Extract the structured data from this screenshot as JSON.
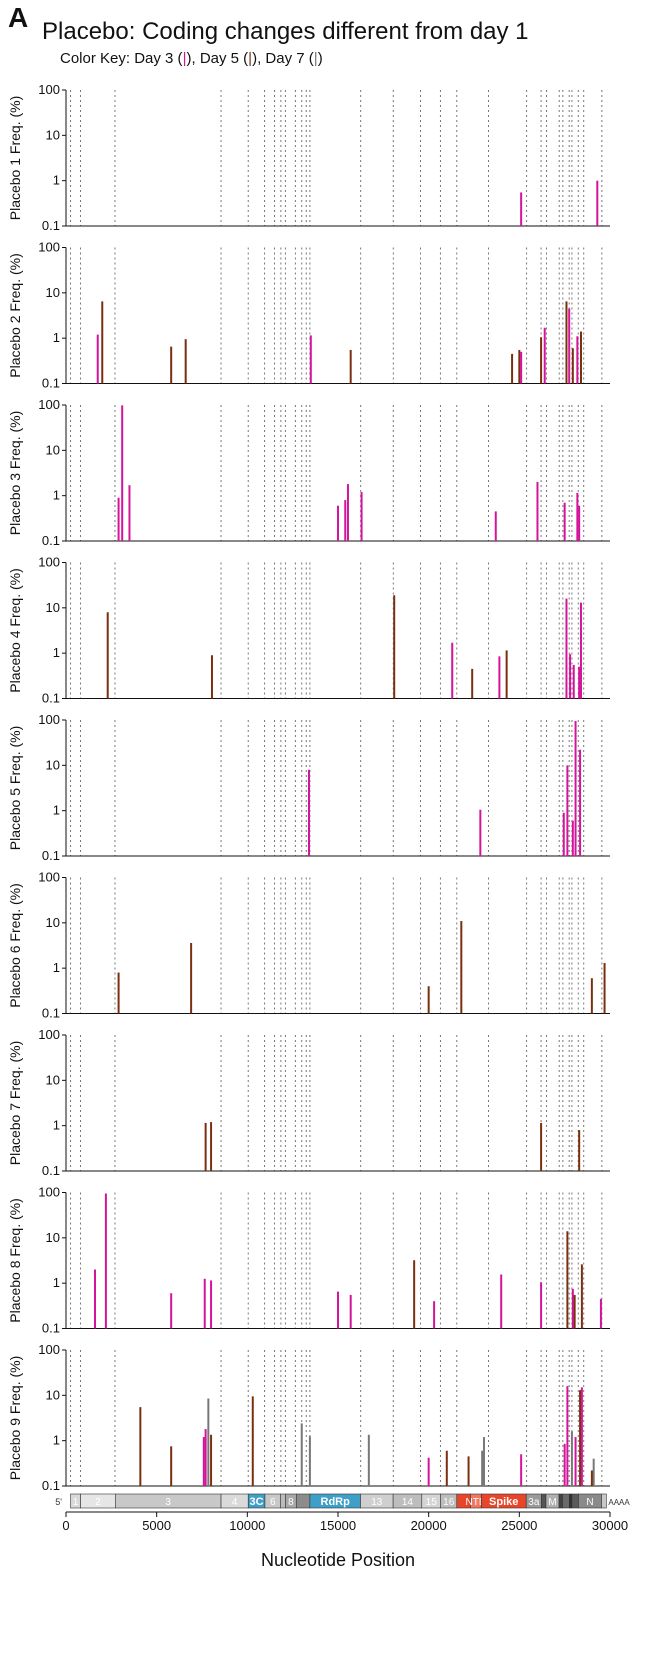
{
  "figure": {
    "panel_letter": "A",
    "title": "Placebo: Coding changes different from day 1",
    "color_key": {
      "prefix": "Color Key: ",
      "items": [
        {
          "label": "Day 3 (",
          "mark": "|",
          "suffix": "), ",
          "color": "#d4149a"
        },
        {
          "label": "Day 5 (",
          "mark": "|",
          "suffix": "), ",
          "color": "#7a3010"
        },
        {
          "label": "Day 7 (",
          "mark": "|",
          "suffix": ")",
          "color": "#777777"
        }
      ]
    }
  },
  "chart_data": {
    "type": "bar",
    "xlabel": "Nucleotide Position",
    "xlim": [
      0,
      30000
    ],
    "x_ticks": [
      0,
      5000,
      10000,
      15000,
      20000,
      25000,
      30000
    ],
    "y_scale": "log",
    "ylim": [
      0.1,
      100
    ],
    "y_ticks": [
      0.1,
      1,
      10,
      100
    ],
    "y_tick_labels": [
      "0.1",
      "1",
      "10",
      "100"
    ],
    "colors": {
      "day3": "#d4149a",
      "day5": "#7a3010",
      "day7": "#777777"
    },
    "gene_boundaries": [
      250,
      800,
      2700,
      8550,
      10050,
      10950,
      11500,
      11850,
      12100,
      12650,
      13000,
      13250,
      13450,
      16250,
      18050,
      19550,
      20650,
      21550,
      23300,
      25400,
      26200,
      26500,
      27200,
      27400,
      27750,
      27900,
      28250,
      28550,
      29550
    ],
    "genome_map": {
      "five_prime": "5'",
      "three_prime": "AAAA",
      "segments": [
        {
          "label": "1",
          "start": 250,
          "end": 800,
          "color": "#d9d9d9",
          "text_color": "#ffffff"
        },
        {
          "label": "2",
          "start": 800,
          "end": 2720,
          "color": "#e6e6e6",
          "text_color": "#ffffff"
        },
        {
          "label": "3",
          "start": 2720,
          "end": 8550,
          "color": "#c8c8c8",
          "text_color": "#ffffff"
        },
        {
          "label": "4",
          "start": 8550,
          "end": 10050,
          "color": "#dadada",
          "text_color": "#ffffff"
        },
        {
          "label": "3C",
          "start": 10050,
          "end": 10970,
          "color": "#3f9fc7",
          "text_color": "#ffffff"
        },
        {
          "label": "6",
          "start": 10970,
          "end": 11840,
          "color": "#c8c8c8",
          "text_color": "#ffffff"
        },
        {
          "label": "",
          "start": 11840,
          "end": 12100,
          "color": "#bbbbbb",
          "text_color": "#ffffff"
        },
        {
          "label": "8",
          "start": 12100,
          "end": 12700,
          "color": "#a8a8a8",
          "text_color": "#ffffff"
        },
        {
          "label": "",
          "start": 12700,
          "end": 13450,
          "color": "#8c8c8c",
          "text_color": "#ffffff"
        },
        {
          "label": "RdRp",
          "start": 13450,
          "end": 16240,
          "color": "#3f9fc7",
          "text_color": "#ffffff"
        },
        {
          "label": "13",
          "start": 16240,
          "end": 18040,
          "color": "#cfcfcf",
          "text_color": "#ffffff"
        },
        {
          "label": "14",
          "start": 18040,
          "end": 19620,
          "color": "#bdbdbd",
          "text_color": "#ffffff"
        },
        {
          "label": "15",
          "start": 19620,
          "end": 20660,
          "color": "#d4d4d4",
          "text_color": "#ffffff"
        },
        {
          "label": "16",
          "start": 20660,
          "end": 21550,
          "color": "#bdbdbd",
          "text_color": "#ffffff"
        },
        {
          "label": "",
          "start": 21550,
          "end": 22300,
          "color": "#e8462b",
          "text_color": "#ffffff"
        },
        {
          "label": "NTD",
          "start": 22300,
          "end": 22900,
          "color": "#f07860",
          "text_color": "#ffffff"
        },
        {
          "label": "Spike",
          "start": 22900,
          "end": 25380,
          "color": "#e8462b",
          "text_color": "#ffffff"
        },
        {
          "label": "3a",
          "start": 25380,
          "end": 26220,
          "color": "#9a9a9a",
          "text_color": "#ffffff"
        },
        {
          "label": "",
          "start": 26220,
          "end": 26470,
          "color": "#555555",
          "text_color": "#ffffff"
        },
        {
          "label": "M",
          "start": 26470,
          "end": 27190,
          "color": "#b0b0b0",
          "text_color": "#ffffff"
        },
        {
          "label": "",
          "start": 27190,
          "end": 27380,
          "color": "#444444",
          "text_color": "#ffffff"
        },
        {
          "label": "",
          "start": 27380,
          "end": 27760,
          "color": "#6a6a6a",
          "text_color": "#ffffff"
        },
        {
          "label": "",
          "start": 27760,
          "end": 27900,
          "color": "#333333",
          "text_color": "#ffffff"
        },
        {
          "label": "",
          "start": 27900,
          "end": 28260,
          "color": "#5a5a5a",
          "text_color": "#ffffff"
        },
        {
          "label": "N",
          "start": 28260,
          "end": 29530,
          "color": "#8a8a8a",
          "text_color": "#ffffff"
        },
        {
          "label": "",
          "start": 29530,
          "end": 29800,
          "color": "#c8c8c8",
          "text_color": "#ffffff"
        }
      ]
    },
    "panels": [
      {
        "ylabel": "Placebo 1 Freq. (%)",
        "bars": [
          {
            "x": 25100,
            "y": 0.55,
            "day": "day3"
          },
          {
            "x": 29300,
            "y": 1.0,
            "day": "day3"
          }
        ]
      },
      {
        "ylabel": "Placebo 2 Freq. (%)",
        "bars": [
          {
            "x": 1750,
            "y": 1.2,
            "day": "day3"
          },
          {
            "x": 2000,
            "y": 6.5,
            "day": "day5"
          },
          {
            "x": 5800,
            "y": 0.65,
            "day": "day5"
          },
          {
            "x": 6600,
            "y": 0.95,
            "day": "day5"
          },
          {
            "x": 13500,
            "y": 1.15,
            "day": "day3"
          },
          {
            "x": 15700,
            "y": 0.55,
            "day": "day5"
          },
          {
            "x": 24600,
            "y": 0.45,
            "day": "day5"
          },
          {
            "x": 25000,
            "y": 0.55,
            "day": "day5"
          },
          {
            "x": 25100,
            "y": 0.5,
            "day": "day3"
          },
          {
            "x": 26200,
            "y": 1.05,
            "day": "day5"
          },
          {
            "x": 26400,
            "y": 1.7,
            "day": "day3"
          },
          {
            "x": 27600,
            "y": 6.5,
            "day": "day5"
          },
          {
            "x": 27750,
            "y": 4.5,
            "day": "day3"
          },
          {
            "x": 27950,
            "y": 0.6,
            "day": "day5"
          },
          {
            "x": 28200,
            "y": 1.1,
            "day": "day3"
          },
          {
            "x": 28400,
            "y": 1.4,
            "day": "day5"
          }
        ]
      },
      {
        "ylabel": "Placebo 3 Freq. (%)",
        "bars": [
          {
            "x": 2900,
            "y": 0.9,
            "day": "day3"
          },
          {
            "x": 3100,
            "y": 98,
            "day": "day3"
          },
          {
            "x": 3500,
            "y": 1.7,
            "day": "day3"
          },
          {
            "x": 15000,
            "y": 0.6,
            "day": "day3"
          },
          {
            "x": 15400,
            "y": 0.8,
            "day": "day3"
          },
          {
            "x": 15550,
            "y": 1.8,
            "day": "day3"
          },
          {
            "x": 16300,
            "y": 1.2,
            "day": "day3"
          },
          {
            "x": 23700,
            "y": 0.45,
            "day": "day3"
          },
          {
            "x": 26000,
            "y": 2.0,
            "day": "day3"
          },
          {
            "x": 27500,
            "y": 0.7,
            "day": "day3"
          },
          {
            "x": 28200,
            "y": 1.15,
            "day": "day3"
          },
          {
            "x": 28300,
            "y": 0.6,
            "day": "day3"
          }
        ]
      },
      {
        "ylabel": "Placebo 4 Freq. (%)",
        "bars": [
          {
            "x": 2300,
            "y": 8.0,
            "day": "day5"
          },
          {
            "x": 8050,
            "y": 0.9,
            "day": "day5"
          },
          {
            "x": 18100,
            "y": 19,
            "day": "day5"
          },
          {
            "x": 21300,
            "y": 1.7,
            "day": "day3"
          },
          {
            "x": 22400,
            "y": 0.45,
            "day": "day5"
          },
          {
            "x": 23900,
            "y": 0.85,
            "day": "day3"
          },
          {
            "x": 24300,
            "y": 1.15,
            "day": "day5"
          },
          {
            "x": 27600,
            "y": 16,
            "day": "day3"
          },
          {
            "x": 27800,
            "y": 0.95,
            "day": "day3"
          },
          {
            "x": 28000,
            "y": 0.55,
            "day": "day3"
          },
          {
            "x": 28300,
            "y": 0.5,
            "day": "day3"
          },
          {
            "x": 28400,
            "y": 13,
            "day": "day3"
          }
        ]
      },
      {
        "ylabel": "Placebo 5 Freq. (%)",
        "bars": [
          {
            "x": 13400,
            "y": 8.0,
            "day": "day3"
          },
          {
            "x": 22850,
            "y": 1.05,
            "day": "day3"
          },
          {
            "x": 27450,
            "y": 0.9,
            "day": "day3"
          },
          {
            "x": 27650,
            "y": 10,
            "day": "day3"
          },
          {
            "x": 27950,
            "y": 0.6,
            "day": "day3"
          },
          {
            "x": 28100,
            "y": 95,
            "day": "day3"
          },
          {
            "x": 28350,
            "y": 22,
            "day": "day3"
          }
        ]
      },
      {
        "ylabel": "Placebo 6 Freq. (%)",
        "bars": [
          {
            "x": 2900,
            "y": 0.8,
            "day": "day5"
          },
          {
            "x": 6900,
            "y": 3.6,
            "day": "day5"
          },
          {
            "x": 20000,
            "y": 0.4,
            "day": "day5"
          },
          {
            "x": 21800,
            "y": 11,
            "day": "day5"
          },
          {
            "x": 29000,
            "y": 0.6,
            "day": "day5"
          },
          {
            "x": 29700,
            "y": 1.3,
            "day": "day5"
          }
        ]
      },
      {
        "ylabel": "Placebo 7 Freq. (%)",
        "bars": [
          {
            "x": 7700,
            "y": 1.15,
            "day": "day5"
          },
          {
            "x": 8000,
            "y": 1.2,
            "day": "day5"
          },
          {
            "x": 26200,
            "y": 1.15,
            "day": "day5"
          },
          {
            "x": 28300,
            "y": 0.8,
            "day": "day5"
          }
        ]
      },
      {
        "ylabel": "Placebo 8 Freq. (%)",
        "bars": [
          {
            "x": 1600,
            "y": 2.0,
            "day": "day3"
          },
          {
            "x": 2200,
            "y": 95,
            "day": "day3"
          },
          {
            "x": 5800,
            "y": 0.6,
            "day": "day3"
          },
          {
            "x": 7650,
            "y": 1.25,
            "day": "day3"
          },
          {
            "x": 8000,
            "y": 1.15,
            "day": "day3"
          },
          {
            "x": 15000,
            "y": 0.65,
            "day": "day3"
          },
          {
            "x": 15700,
            "y": 0.55,
            "day": "day3"
          },
          {
            "x": 19200,
            "y": 3.2,
            "day": "day5"
          },
          {
            "x": 20300,
            "y": 0.4,
            "day": "day3"
          },
          {
            "x": 24000,
            "y": 1.55,
            "day": "day3"
          },
          {
            "x": 26200,
            "y": 1.05,
            "day": "day3"
          },
          {
            "x": 27650,
            "y": 14,
            "day": "day5"
          },
          {
            "x": 27950,
            "y": 0.75,
            "day": "day3"
          },
          {
            "x": 28050,
            "y": 0.55,
            "day": "day5"
          },
          {
            "x": 28450,
            "y": 2.6,
            "day": "day5"
          },
          {
            "x": 29500,
            "y": 0.45,
            "day": "day3"
          }
        ]
      },
      {
        "ylabel": "Placebo 9 Freq. (%)",
        "bars": [
          {
            "x": 4100,
            "y": 5.5,
            "day": "day5"
          },
          {
            "x": 5800,
            "y": 0.75,
            "day": "day5"
          },
          {
            "x": 7600,
            "y": 1.2,
            "day": "day3"
          },
          {
            "x": 7700,
            "y": 1.8,
            "day": "day3"
          },
          {
            "x": 7850,
            "y": 8.5,
            "day": "day7"
          },
          {
            "x": 8000,
            "y": 1.35,
            "day": "day5"
          },
          {
            "x": 10300,
            "y": 9.5,
            "day": "day5"
          },
          {
            "x": 13000,
            "y": 2.4,
            "day": "day7"
          },
          {
            "x": 13450,
            "y": 1.25,
            "day": "day7"
          },
          {
            "x": 16700,
            "y": 1.35,
            "day": "day7"
          },
          {
            "x": 20000,
            "y": 0.42,
            "day": "day3"
          },
          {
            "x": 21000,
            "y": 0.6,
            "day": "day5"
          },
          {
            "x": 22200,
            "y": 0.45,
            "day": "day5"
          },
          {
            "x": 22950,
            "y": 0.6,
            "day": "day7"
          },
          {
            "x": 23050,
            "y": 1.2,
            "day": "day7"
          },
          {
            "x": 25100,
            "y": 0.5,
            "day": "day3"
          },
          {
            "x": 27500,
            "y": 0.85,
            "day": "day3"
          },
          {
            "x": 27650,
            "y": 16,
            "day": "day3"
          },
          {
            "x": 27900,
            "y": 1.6,
            "day": "day7"
          },
          {
            "x": 28100,
            "y": 1.2,
            "day": "day3"
          },
          {
            "x": 28350,
            "y": 13,
            "day": "day5"
          },
          {
            "x": 28450,
            "y": 15,
            "day": "day3"
          },
          {
            "x": 29100,
            "y": 0.4,
            "day": "day7"
          },
          {
            "x": 29000,
            "y": 0.22,
            "day": "day5"
          }
        ]
      }
    ]
  }
}
